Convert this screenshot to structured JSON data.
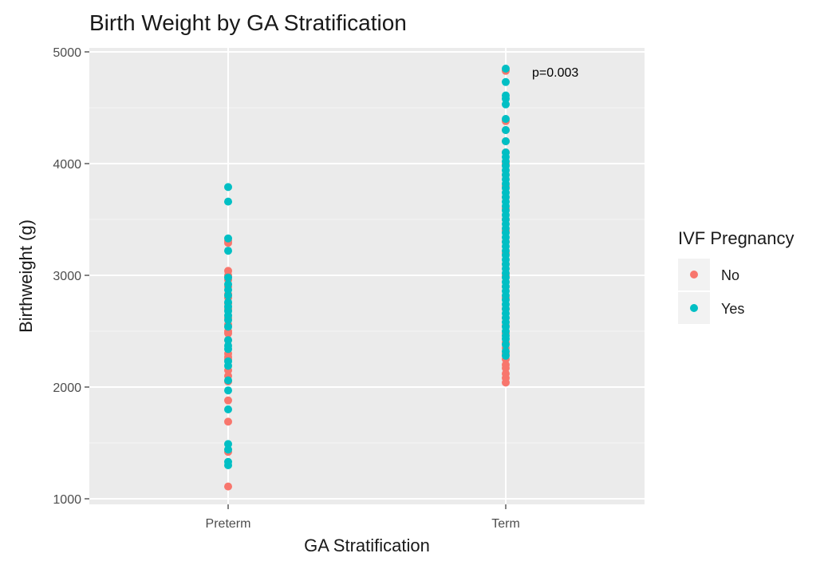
{
  "chart_data": {
    "type": "scatter",
    "title": "Birth Weight by GA Stratification",
    "xlabel": "GA Stratification",
    "ylabel": "Birthweight (g)",
    "categories": [
      "Preterm",
      "Term"
    ],
    "ylim": [
      1000,
      5000
    ],
    "yticks": [
      1000,
      2000,
      3000,
      4000,
      5000
    ],
    "grid": true,
    "legend": {
      "title": "IVF Pregnancy",
      "position": "right",
      "entries": [
        {
          "label": "No",
          "color": "#F8766D"
        },
        {
          "label": "Yes",
          "color": "#00BFC4"
        }
      ]
    },
    "annotation": {
      "text": "p=0.003",
      "category": "Term",
      "y": 4820
    },
    "series": [
      {
        "name": "No",
        "color": "#F8766D",
        "points": [
          {
            "x": "Preterm",
            "y": [
              1110,
              1420,
              1690,
              1880,
              2050,
              2100,
              2150,
              2250,
              2270,
              2300,
              2420,
              2480,
              2500,
              2560,
              2620,
              2700,
              2750,
              2800,
              2830,
              2900,
              2960,
              3000,
              3040,
              3290,
              3310
            ]
          },
          {
            "x": "Term",
            "y": [
              2040,
              2080,
              2120,
              2170,
              2200,
              2250,
              2300,
              2350,
              2400,
              2480,
              2550,
              2620,
              2700,
              2800,
              2900,
              3000,
              3100,
              3200,
              3300,
              3400,
              3500,
              3600,
              3700,
              3800,
              3900,
              4000,
              4100,
              4200,
              4300,
              4380,
              4830
            ]
          }
        ]
      },
      {
        "name": "Yes",
        "color": "#00BFC4",
        "points": [
          {
            "x": "Preterm",
            "y": [
              1300,
              1330,
              1440,
              1490,
              1800,
              1970,
              2060,
              2190,
              2230,
              2340,
              2370,
              2420,
              2540,
              2600,
              2640,
              2680,
              2720,
              2760,
              2820,
              2870,
              2920,
              2980,
              3220,
              3330,
              3660,
              3790
            ]
          },
          {
            "x": "Term",
            "y": [
              2280,
              2320,
              2380,
              2430,
              2460,
              2500,
              2540,
              2580,
              2620,
              2660,
              2700,
              2740,
              2780,
              2820,
              2860,
              2900,
              2940,
              2980,
              3020,
              3060,
              3100,
              3140,
              3180,
              3220,
              3260,
              3300,
              3340,
              3380,
              3420,
              3460,
              3500,
              3540,
              3580,
              3620,
              3660,
              3700,
              3740,
              3780,
              3820,
              3860,
              3900,
              3940,
              3980,
              4020,
              4060,
              4100,
              4200,
              4300,
              4400,
              4530,
              4580,
              4610,
              4730,
              4850
            ]
          }
        ]
      }
    ]
  }
}
